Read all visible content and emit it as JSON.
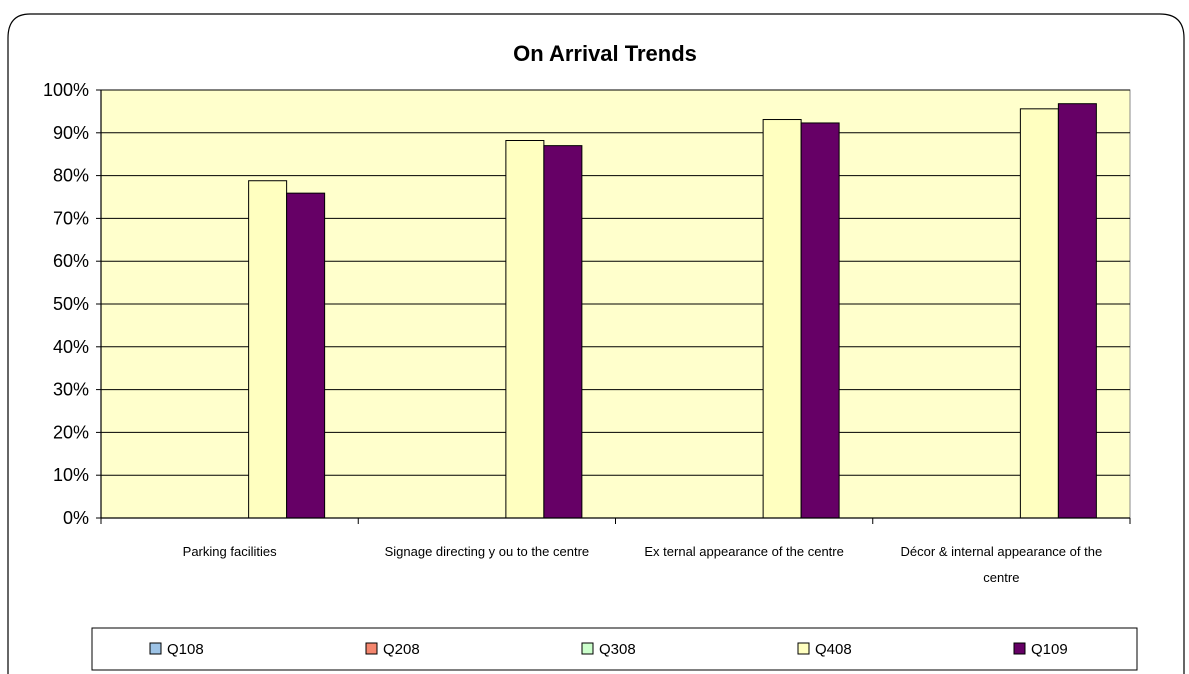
{
  "chart_data": {
    "type": "bar",
    "title": "On Arrival Trends",
    "xlabel": "",
    "ylabel": "",
    "ylim": [
      0,
      100
    ],
    "yticks": [
      "0%",
      "10%",
      "20%",
      "30%",
      "40%",
      "50%",
      "60%",
      "70%",
      "80%",
      "90%",
      "100%"
    ],
    "categories": [
      [
        "Parking facilities"
      ],
      [
        "Signage directing y ou to the centre"
      ],
      [
        "Ex ternal appearance of the centre"
      ],
      [
        "Décor & internal appearance of the",
        "centre"
      ]
    ],
    "series": [
      {
        "name": "Q108",
        "values": [
          null,
          null,
          null,
          null
        ],
        "color": "#9DC3E6"
      },
      {
        "name": "Q208",
        "values": [
          null,
          null,
          null,
          null
        ],
        "color": "#F4866E"
      },
      {
        "name": "Q308",
        "values": [
          null,
          null,
          null,
          null
        ],
        "color": "#CCFFCC"
      },
      {
        "name": "Q408",
        "values": [
          78.8,
          88.2,
          93.1,
          95.6
        ],
        "color": "#FFFFC0"
      },
      {
        "name": "Q109",
        "values": [
          75.9,
          87.0,
          92.3,
          96.8
        ],
        "color": "#660066"
      }
    ],
    "plot_background": "#FFFFCC",
    "grid": true,
    "legend_position": "bottom"
  }
}
